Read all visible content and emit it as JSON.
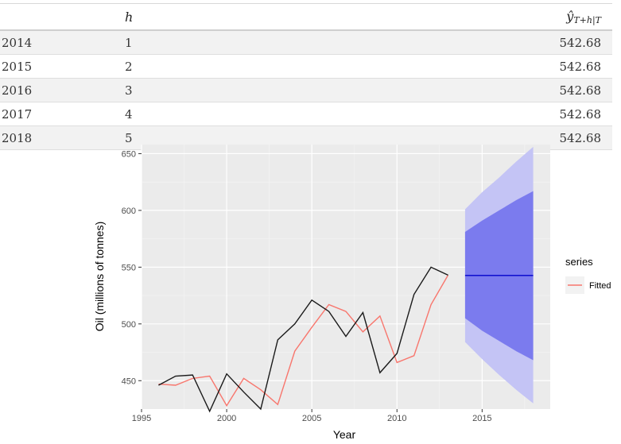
{
  "table": {
    "headers": {
      "h": "h",
      "yhat_main": "ŷ",
      "yhat_sub": "T+h|T"
    },
    "rows": [
      {
        "year": "2014",
        "h": "1",
        "value": "542.68"
      },
      {
        "year": "2015",
        "h": "2",
        "value": "542.68"
      },
      {
        "year": "2016",
        "h": "3",
        "value": "542.68"
      },
      {
        "year": "2017",
        "h": "4",
        "value": "542.68"
      },
      {
        "year": "2018",
        "h": "5",
        "value": "542.68"
      }
    ]
  },
  "chart_data": {
    "type": "line",
    "title": "",
    "xlabel": "Year",
    "ylabel": "Oil (millions of tonnes)",
    "xlim": [
      1995,
      2019
    ],
    "ylim": [
      425,
      658
    ],
    "xticks": [
      1995,
      2000,
      2005,
      2010,
      2015
    ],
    "yticks": [
      450,
      500,
      550,
      600,
      650
    ],
    "grid": true,
    "legend": {
      "title": "series",
      "position": "right",
      "entries": [
        "Fitted"
      ]
    },
    "colors": {
      "observed": "#1a1a1a",
      "fitted": "#f8766d",
      "forecast": "#0000cc",
      "band80": "#7b7bee",
      "band95": "#c4c4f5",
      "panel": "#ebebeb"
    },
    "series": [
      {
        "x": [
          1996,
          1997,
          1998,
          1999,
          2000,
          2001,
          2002,
          2003,
          2004,
          2005,
          2006,
          2007,
          2008,
          2009,
          2010,
          2011,
          2012,
          2013
        ],
        "values": [
          446,
          454,
          455,
          423,
          456,
          440,
          425,
          486,
          500,
          521,
          511,
          489,
          510,
          457,
          474,
          526,
          550,
          543
        ]
      },
      {
        "name": "Fitted",
        "x": [
          1996,
          1997,
          1998,
          1999,
          2000,
          2001,
          2002,
          2003,
          2004,
          2005,
          2006,
          2007,
          2008,
          2009,
          2010,
          2011,
          2012,
          2013
        ],
        "values": [
          447,
          446,
          452,
          454,
          428,
          452,
          442,
          429,
          476,
          497,
          517,
          511,
          493,
          507,
          466,
          472,
          517,
          543
        ]
      }
    ],
    "forecast": {
      "x": [
        2014,
        2015,
        2016,
        2017,
        2018
      ],
      "mean": [
        542.68,
        542.68,
        542.68,
        542.68,
        542.68
      ],
      "lo80": [
        505,
        494,
        485,
        476,
        468
      ],
      "hi80": [
        581,
        591,
        600,
        609,
        617
      ],
      "lo95": [
        484,
        469,
        455,
        442,
        430
      ],
      "hi95": [
        601,
        616,
        629,
        643,
        656
      ]
    }
  }
}
